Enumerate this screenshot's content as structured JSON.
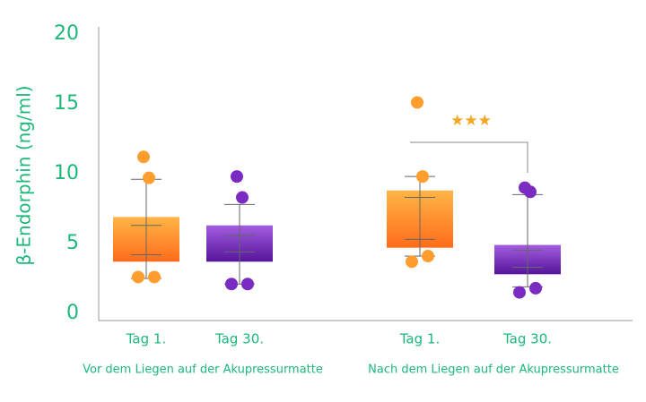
{
  "chart_data": {
    "type": "box",
    "ylabel": "β-Endorphin  (ng/ml)",
    "ylim": [
      0,
      20
    ],
    "yticks": [
      0,
      5,
      10,
      15,
      20
    ],
    "text_color": "#1db87a",
    "groups": [
      {
        "name": "Vor dem Liegen auf der Akupressurmatte",
        "boxes": [
          {
            "category": "Tag 1.",
            "colors": [
              "#ffb545",
              "#ff6c1c"
            ],
            "point_color": "#ff9d2e",
            "q1": 3.7,
            "q3": 6.9,
            "whisker_low": 2.5,
            "whisker_high": 9.6,
            "inner_low": 4.2,
            "inner_high": 6.3,
            "points": [
              11.2,
              9.7,
              2.6,
              2.6
            ]
          },
          {
            "category": "Tag 30.",
            "colors": [
              "#a45de0",
              "#55149a"
            ],
            "point_color": "#7a2cc2",
            "q1": 3.7,
            "q3": 6.3,
            "whisker_low": 2.1,
            "whisker_high": 7.8,
            "inner_low": 4.4,
            "inner_high": 5.6,
            "points": [
              9.8,
              8.3,
              2.1,
              2.1
            ]
          }
        ]
      },
      {
        "name": "Nach dem Liegen auf der Akupressurmatte",
        "boxes": [
          {
            "category": "Tag 1.",
            "colors": [
              "#ffb545",
              "#ff6c1c"
            ],
            "point_color": "#ff9d2e",
            "q1": 4.7,
            "q3": 8.8,
            "whisker_low": 4.1,
            "whisker_high": 9.8,
            "inner_low": 5.3,
            "inner_high": 8.3,
            "points": [
              15.1,
              9.8,
              3.7,
              4.1
            ]
          },
          {
            "category": "Tag 30.",
            "colors": [
              "#a45de0",
              "#55149a"
            ],
            "point_color": "#7a2cc2",
            "q1": 2.8,
            "q3": 4.9,
            "whisker_low": 1.9,
            "whisker_high": 8.5,
            "inner_low": 3.3,
            "inner_high": 4.5,
            "points": [
              9.0,
              8.7,
              1.5,
              1.8
            ]
          }
        ]
      }
    ],
    "annotation": {
      "text": "★★★",
      "color": "#f5a623"
    }
  }
}
